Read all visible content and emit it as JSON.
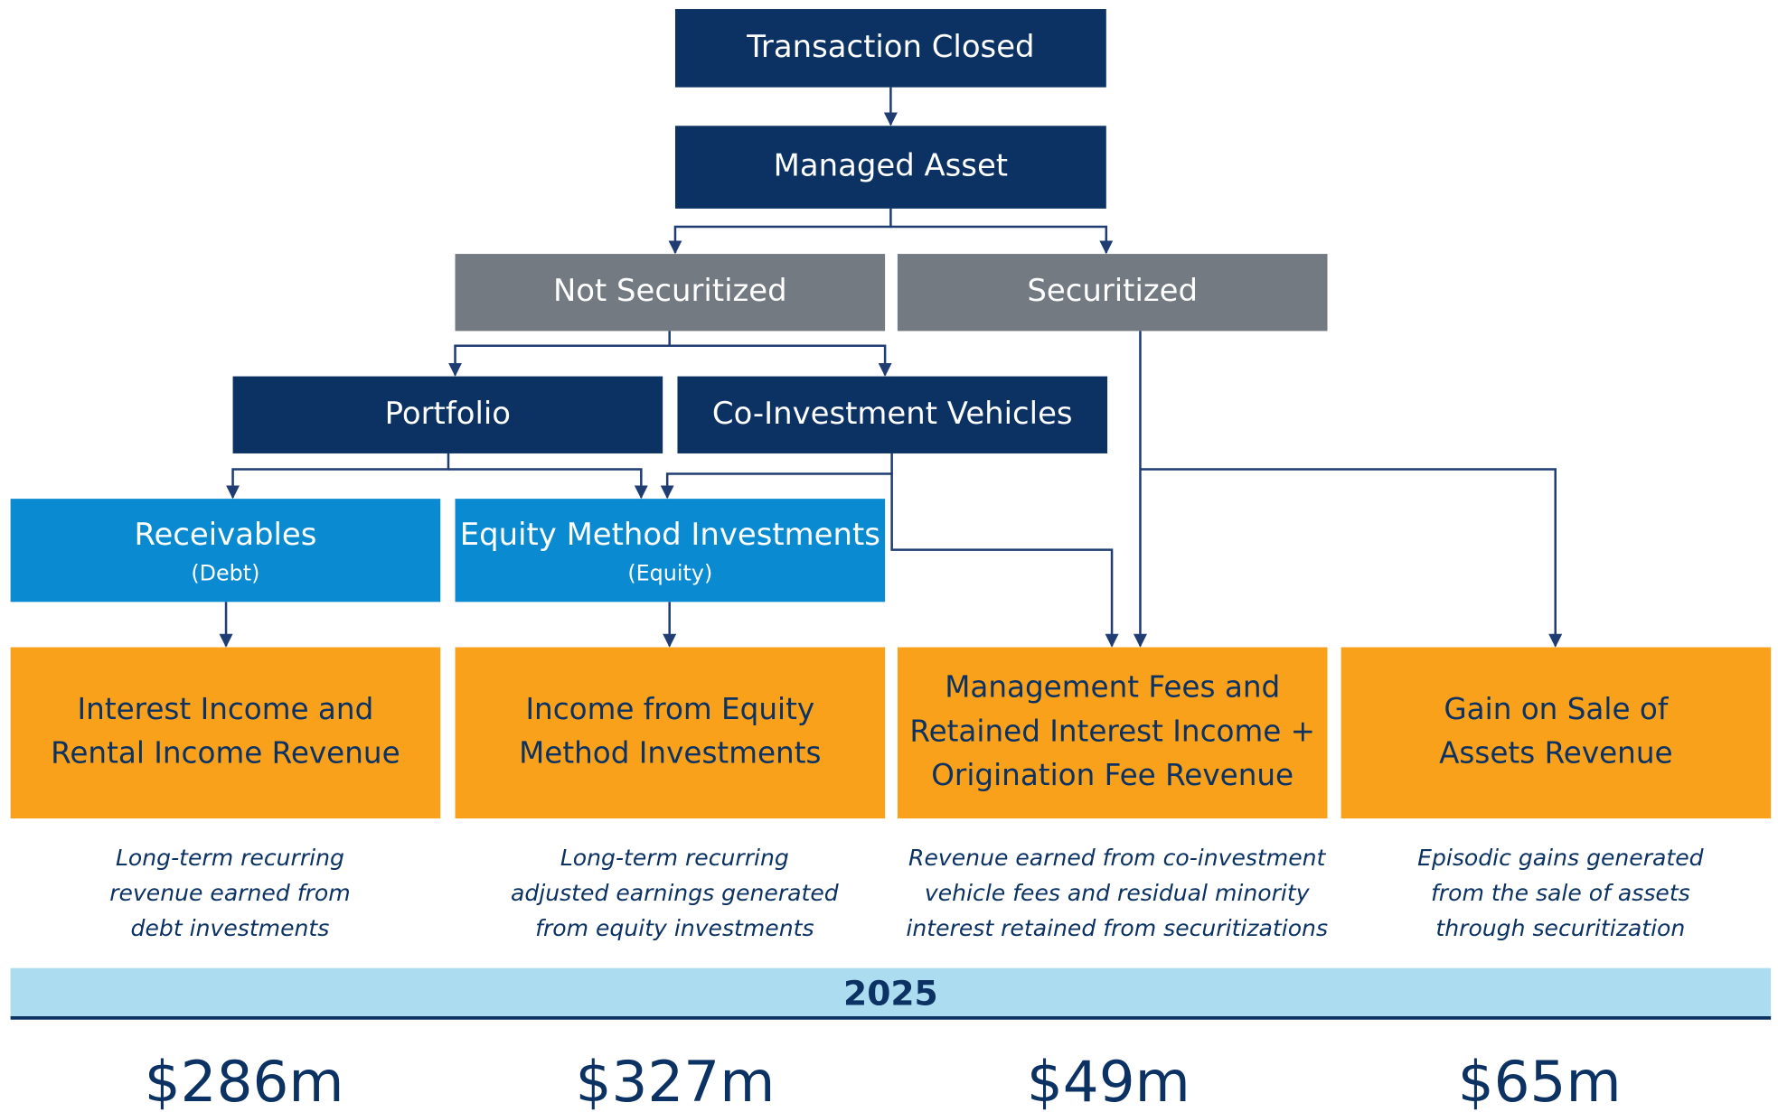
{
  "nodes": [
    {
      "label": "Transaction Closed"
    },
    {
      "label": "Managed Asset"
    },
    {
      "label": "Not Securitized"
    },
    {
      "label": "Securitized"
    },
    {
      "label": "Portfolio"
    },
    {
      "label": "Co-Investment Vehicles"
    },
    {
      "label": "Receivables",
      "sublabel": "(Debt)"
    },
    {
      "label": "Equity Method Investments",
      "sublabel": "(Equity)"
    }
  ],
  "outcomes": [
    {
      "title": [
        "Interest Income and",
        "Rental Income Revenue"
      ],
      "description": [
        "Long-term recurring",
        "revenue earned from",
        "debt investments"
      ],
      "amount": "$286m"
    },
    {
      "title": [
        "Income from Equity",
        "Method Investments"
      ],
      "description": [
        "Long-term recurring",
        "adjusted earnings generated",
        "from equity investments"
      ],
      "amount": "$327m"
    },
    {
      "title": [
        "Management Fees and",
        "Retained Interest Income +",
        "Origination Fee Revenue"
      ],
      "description": [
        "Revenue earned from co-investment",
        "vehicle fees and residual minority",
        "interest retained from securitizations"
      ],
      "amount": "$49m"
    },
    {
      "title": [
        "Gain on Sale of",
        "Assets Revenue"
      ],
      "description": [
        "Episodic gains generated",
        "from the sale of assets",
        "through securitization"
      ],
      "amount": "$65m"
    }
  ],
  "year": "2025"
}
